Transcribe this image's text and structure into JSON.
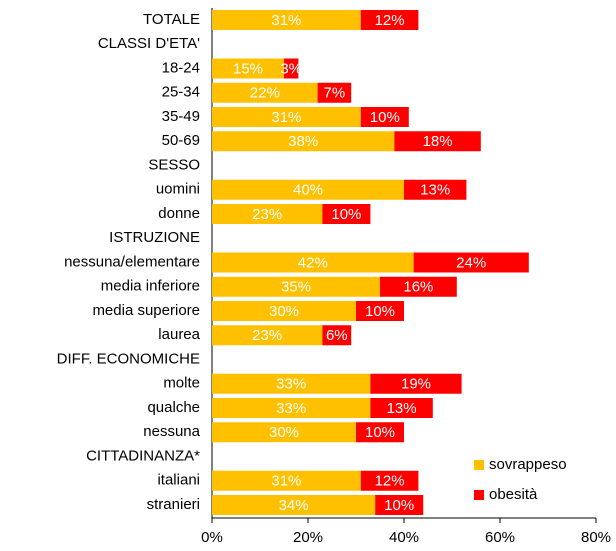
{
  "chart_data": {
    "type": "stacked-bar-horizontal",
    "categories": [
      "TOTALE",
      "CLASSI D'ETA'",
      "18-24",
      "25-34",
      "35-49",
      "50-69",
      "SESSO",
      "uomini",
      "donne",
      "ISTRUZIONE",
      "nessuna/elementare",
      "media inferiore",
      "media superiore",
      "laurea",
      "DIFF. ECONOMICHE",
      "molte",
      "qualche",
      "nessuna",
      "CITTADINANZA*",
      "italiani",
      "stranieri"
    ],
    "series": [
      {
        "name": "sovrappeso",
        "color": "#ffc000",
        "values": [
          31,
          null,
          15,
          22,
          31,
          38,
          null,
          40,
          23,
          null,
          42,
          35,
          30,
          23,
          null,
          33,
          33,
          30,
          null,
          31,
          34
        ],
        "value_labels": [
          "31%",
          null,
          "15%",
          "22%",
          "31%",
          "38%",
          null,
          "40%",
          "23%",
          null,
          "42%",
          "35%",
          "30%",
          "23%",
          null,
          "33%",
          "33%",
          "30%",
          null,
          "31%",
          "34%"
        ]
      },
      {
        "name": "obesità",
        "color": "#ff0000",
        "values": [
          12,
          null,
          3,
          7,
          10,
          18,
          null,
          13,
          10,
          null,
          24,
          16,
          10,
          6,
          null,
          19,
          13,
          10,
          null,
          12,
          10
        ],
        "value_labels": [
          "12%",
          null,
          "3%",
          "7%",
          "10%",
          "18%",
          null,
          "13%",
          "10%",
          null,
          "24%",
          "16%",
          "10%",
          "6%",
          null,
          "19%",
          "13%",
          "10%",
          null,
          "12%",
          "10%"
        ]
      }
    ],
    "xlim": [
      0,
      80
    ],
    "xticks": [
      {
        "value": 0,
        "label": "0%"
      },
      {
        "value": 20,
        "label": "20%"
      },
      {
        "value": 40,
        "label": "40%"
      },
      {
        "value": 60,
        "label": "60%"
      },
      {
        "value": 80,
        "label": "80%"
      }
    ],
    "legend": "bottom-right"
  }
}
